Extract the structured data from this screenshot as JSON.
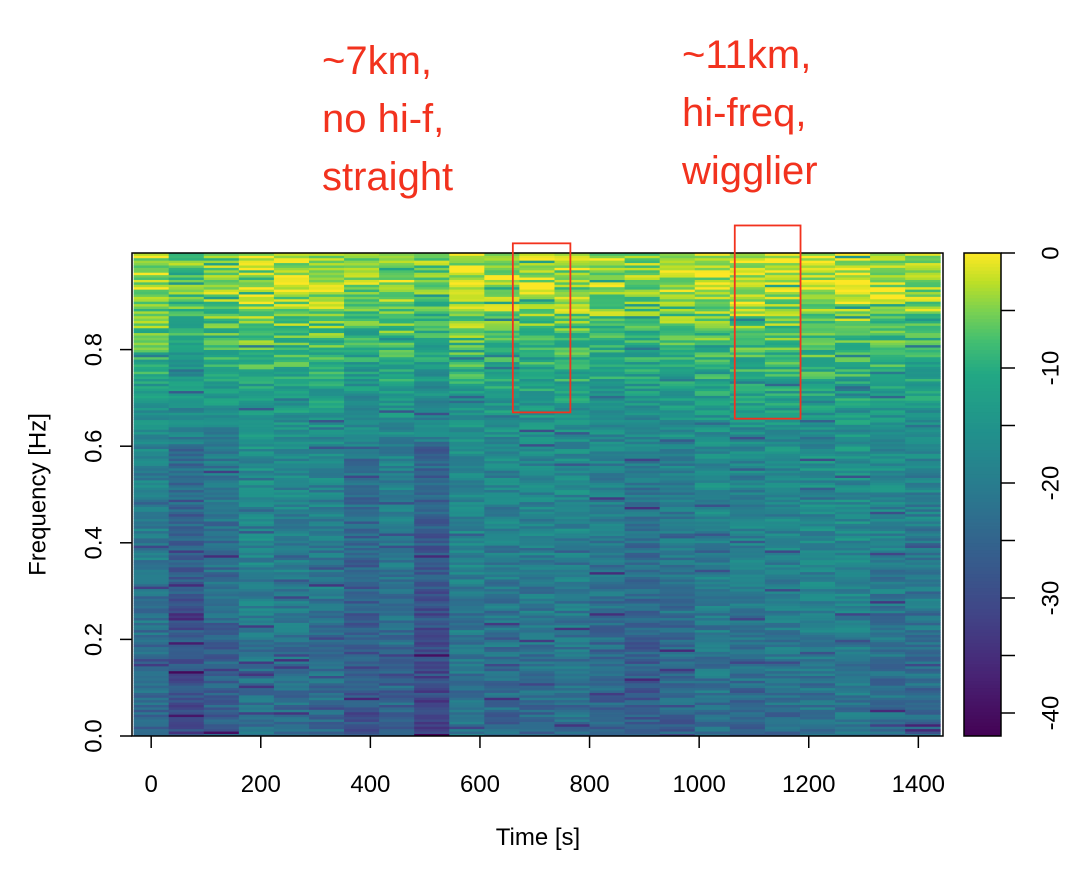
{
  "chart_data": {
    "type": "heatmap",
    "title": "",
    "xlabel": "Time [s]",
    "ylabel": "Frequency [Hz]",
    "xlim": [
      -35,
      1445
    ],
    "ylim": [
      0,
      1
    ],
    "x_ticks": [
      0,
      200,
      400,
      600,
      800,
      1000,
      1200,
      1400
    ],
    "y_ticks": [
      0.0,
      0.2,
      0.4,
      0.6,
      0.8
    ],
    "x_tick_labels": [
      "0",
      "200",
      "400",
      "600",
      "800",
      "1000",
      "1200",
      "1400"
    ],
    "y_tick_labels": [
      "0.0",
      "0.2",
      "0.4",
      "0.6",
      "0.8"
    ],
    "colorbar": {
      "colormap": "viridis",
      "range": [
        -42,
        0
      ],
      "ticks": [
        0,
        -10,
        -20,
        -30,
        -40
      ],
      "tick_labels": [
        "0",
        "-10",
        "-20",
        "-30",
        "-40"
      ]
    },
    "time_bins": [
      0,
      64,
      128,
      192,
      256,
      320,
      384,
      448,
      512,
      576,
      640,
      704,
      768,
      832,
      896,
      960,
      1024,
      1088,
      1152,
      1216,
      1280,
      1344,
      1408
    ],
    "frequency_range": [
      0,
      1
    ],
    "frequency_bins": 200,
    "grid": false,
    "annotations": [
      {
        "lines": [
          "~7km,",
          "no hi-f,",
          "straight"
        ],
        "box": {
          "time": [
            660,
            765
          ],
          "frequency": [
            0.67,
            1.02
          ]
        },
        "color": "#f2321e"
      },
      {
        "lines": [
          "~11km,",
          "hi-freq,",
          "wigglier"
        ],
        "box": {
          "time": [
            1065,
            1185
          ],
          "frequency": [
            0.657,
            1.057
          ]
        },
        "color": "#f2321e"
      }
    ]
  }
}
